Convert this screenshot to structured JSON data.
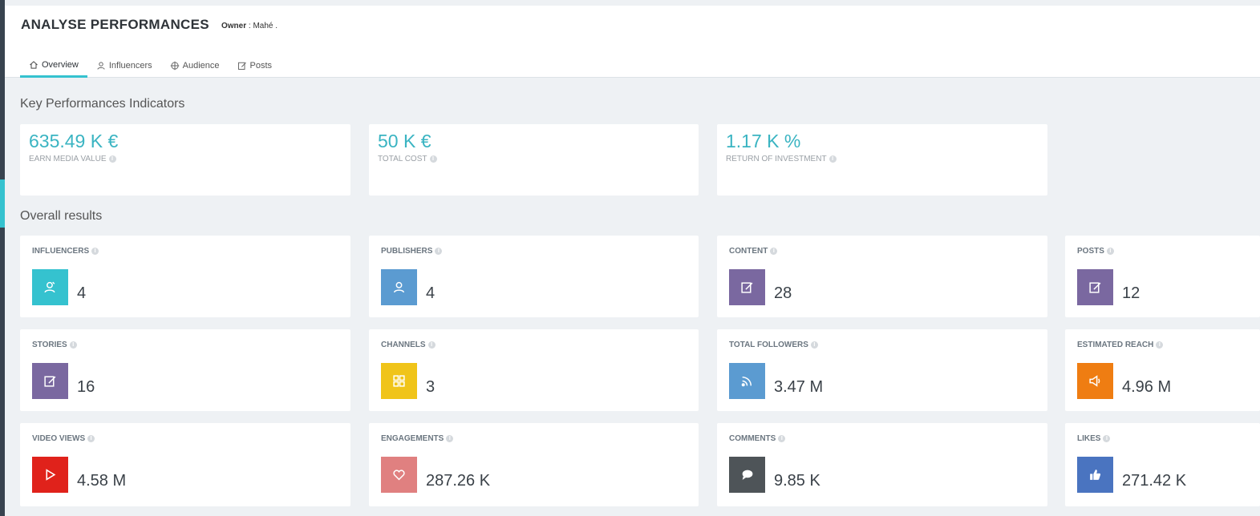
{
  "header": {
    "title": "ANALYSE PERFORMANCES",
    "owner_label": "Owner",
    "owner_value": ": Mahé ."
  },
  "tabs": [
    {
      "label": "Overview",
      "icon": "home-icon",
      "active": true
    },
    {
      "label": "Influencers",
      "icon": "user-icon",
      "active": false
    },
    {
      "label": "Audience",
      "icon": "crosshair-icon",
      "active": false
    },
    {
      "label": "Posts",
      "icon": "edit-icon",
      "active": false
    }
  ],
  "kpi_section": {
    "title": "Key Performances Indicators",
    "cards": [
      {
        "value": "635.49 K €",
        "label": "EARN MEDIA VALUE"
      },
      {
        "value": "50 K €",
        "label": "TOTAL COST"
      },
      {
        "value": "1.17 K %",
        "label": "RETURN OF INVESTMENT"
      }
    ]
  },
  "results_section": {
    "title": "Overall results",
    "cards": [
      {
        "label": "INFLUENCERS",
        "value": "4",
        "icon": "influencer-icon",
        "color": "#35c2cf"
      },
      {
        "label": "PUBLISHERS",
        "value": "4",
        "icon": "user-icon",
        "color": "#5b9bd1"
      },
      {
        "label": "CONTENT",
        "value": "28",
        "icon": "edit-icon",
        "color": "#7a68a0"
      },
      {
        "label": "POSTS",
        "value": "12",
        "icon": "edit-icon",
        "color": "#7a68a0"
      },
      {
        "label": "STORIES",
        "value": "16",
        "icon": "edit-icon",
        "color": "#7a68a0"
      },
      {
        "label": "CHANNELS",
        "value": "3",
        "icon": "grid-icon",
        "color": "#f0c419"
      },
      {
        "label": "TOTAL FOLLOWERS",
        "value": "3.47 M",
        "icon": "rss-icon",
        "color": "#5b9bd1"
      },
      {
        "label": "ESTIMATED REACH",
        "value": "4.96 M",
        "icon": "megaphone-icon",
        "color": "#ef7d12"
      },
      {
        "label": "VIDEO VIEWS",
        "value": "4.58 M",
        "icon": "play-icon",
        "color": "#e0221b"
      },
      {
        "label": "ENGAGEMENTS",
        "value": "287.26 K",
        "icon": "heart-icon",
        "color": "#e08080"
      },
      {
        "label": "COMMENTS",
        "value": "9.85 K",
        "icon": "comment-icon",
        "color": "#4e5458"
      },
      {
        "label": "LIKES",
        "value": "271.42 K",
        "icon": "thumbs-up-icon",
        "color": "#4a74c0"
      }
    ]
  }
}
